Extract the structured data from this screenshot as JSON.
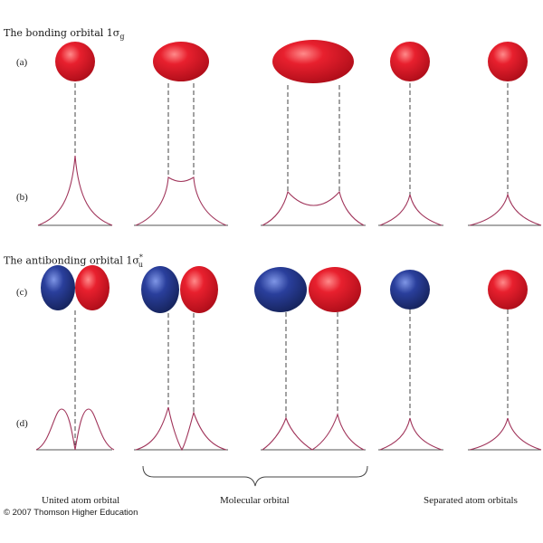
{
  "bonding": {
    "title_main": "The bonding orbital 1σ",
    "title_sub": "g",
    "row_a": "(a)",
    "row_b": "(b)"
  },
  "antibonding": {
    "title_main": "The antibonding orbital 1σ",
    "title_sup": "*",
    "title_sub": "u",
    "row_c": "(c)",
    "row_d": "(d)"
  },
  "captions": {
    "united": "United atom orbital",
    "molecular": "Molecular orbital",
    "separated": "Separated atom orbitals"
  },
  "copyright": "© 2007 Thomson Higher Education",
  "colors": {
    "positive_lobe": "#e8202e",
    "negative_lobe": "#2a3f9c",
    "curve": "#a0345a",
    "axis": "#555555",
    "guide": "#444444"
  }
}
